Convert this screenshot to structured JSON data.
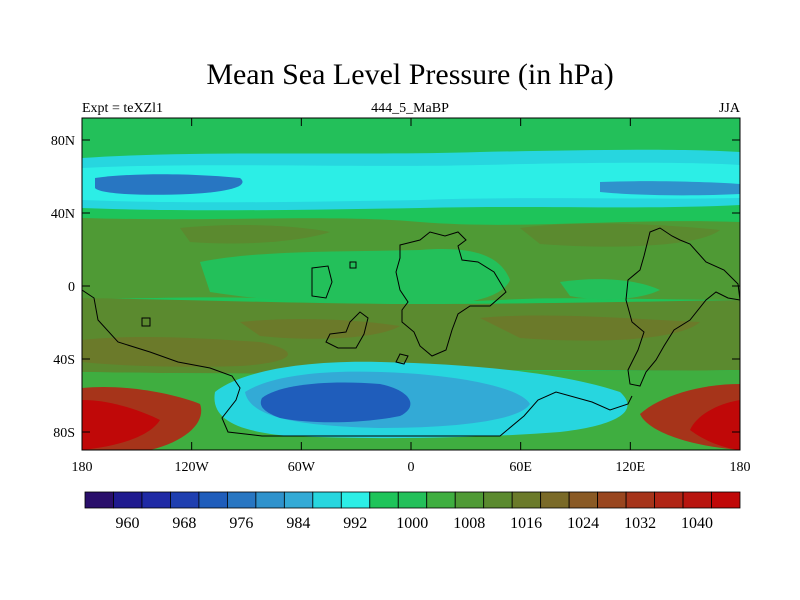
{
  "title": "Mean Sea Level Pressure (in hPa)",
  "left_label": "Expt = teXZl1",
  "center_label": "444_5_MaBP",
  "right_label": "JJA",
  "lat_ticks": [
    "80N",
    "40N",
    "0",
    "40S",
    "80S"
  ],
  "lon_ticks": [
    "180",
    "120W",
    "60W",
    "0",
    "60E",
    "120E",
    "180"
  ],
  "colorbar_labels": [
    "960",
    "968",
    "976",
    "984",
    "992",
    "1000",
    "1008",
    "1016",
    "1024",
    "1032",
    "1040"
  ],
  "colors": {
    "levels": [
      "#2a0f6b",
      "#1f1a8f",
      "#1f2aa5",
      "#1f3fb0",
      "#1f5dbb",
      "#2876c2",
      "#2f92cc",
      "#33aad6",
      "#27d6df",
      "#2ceee6",
      "#1ec45a",
      "#23c05a",
      "#3fae40",
      "#4f9a35",
      "#5b8a2f",
      "#6b7a2a",
      "#7a6a28",
      "#8a5a25",
      "#99461f",
      "#a6341a",
      "#b02515",
      "#b8150f",
      "#c00808"
    ],
    "coast": "#000000"
  }
}
